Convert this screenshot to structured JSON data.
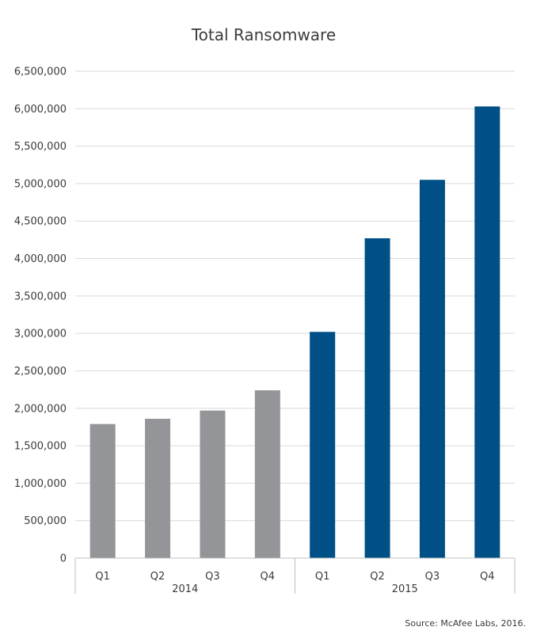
{
  "chart_data": {
    "type": "bar",
    "title": "Total Ransomware",
    "source": "Source: McAfee Labs, 2016.",
    "xlabel": "",
    "ylabel": "",
    "ylim": [
      0,
      6500000
    ],
    "yticks": [
      0,
      500000,
      1000000,
      1500000,
      2000000,
      2500000,
      3000000,
      3500000,
      4000000,
      4500000,
      5000000,
      5500000,
      6000000,
      6500000
    ],
    "ytick_labels": [
      "0",
      "500,000",
      "1,000,000",
      "1,500,000",
      "2,000,000",
      "2,500,000",
      "3,000,000",
      "3,500,000",
      "4,000,000",
      "4,500,000",
      "5,000,000",
      "5,500,000",
      "6,000,000",
      "6,500,000"
    ],
    "grid": true,
    "legend": "none",
    "groups": [
      {
        "year": "2014",
        "color": "#939598",
        "categories": [
          "Q1",
          "Q2",
          "Q3",
          "Q4"
        ],
        "values": [
          1790000,
          1860000,
          1970000,
          2240000
        ]
      },
      {
        "year": "2015",
        "color": "#004f86",
        "categories": [
          "Q1",
          "Q2",
          "Q3",
          "Q4"
        ],
        "values": [
          3020000,
          4270000,
          5050000,
          6030000
        ]
      }
    ]
  }
}
